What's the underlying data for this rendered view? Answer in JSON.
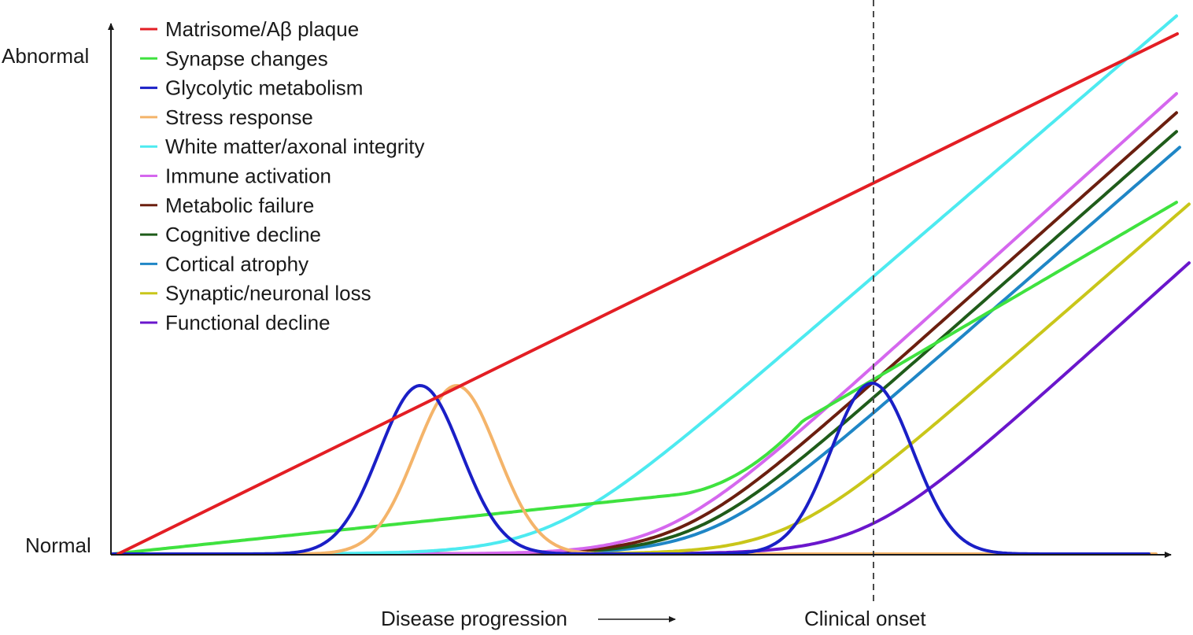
{
  "axes": {
    "y_top_label": "Abnormal",
    "y_bottom_label": "Normal",
    "x_label": "Disease progression",
    "onset_label": "Clinical onset"
  },
  "legend": [
    {
      "label": "Matrisome/Aβ plaque",
      "color": "#e31e24"
    },
    {
      "label": "Synapse changes",
      "color": "#3fe23f"
    },
    {
      "label": "Glycolytic metabolism",
      "color": "#1a1fc6"
    },
    {
      "label": "Stress response",
      "color": "#f4b46a"
    },
    {
      "label": "White matter/axonal integrity",
      "color": "#4deaf0"
    },
    {
      "label": "Immune activation",
      "color": "#d567ee"
    },
    {
      "label": "Metabolic failure",
      "color": "#6b1f0f"
    },
    {
      "label": "Cognitive decline",
      "color": "#1f5c1a"
    },
    {
      "label": "Cortical atrophy",
      "color": "#1f86c6"
    },
    {
      "label": "Synaptic/neuronal loss",
      "color": "#c9c61a"
    },
    {
      "label": "Functional decline",
      "color": "#6a16cc"
    }
  ]
}
